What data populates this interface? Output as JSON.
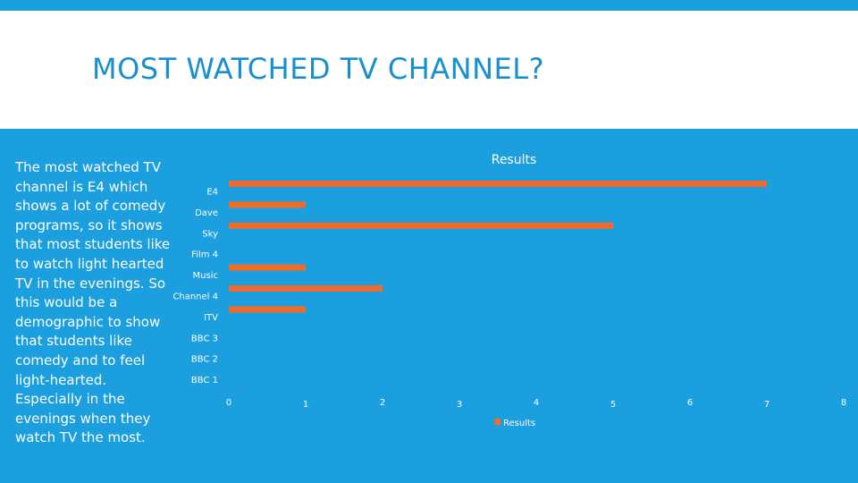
{
  "slide": {
    "title": "MOST WATCHED TV CHANNEL?",
    "body": "The most watched TV channel is E4 which shows a lot of comedy programs, so it shows that most students like to watch light hearted TV in the evenings. So this would be a demographic to show that students like comedy and to feel light-hearted. Especially in the evenings when they watch TV the most.",
    "background_color": "#1b9fdf",
    "title_color": "#1a8fd0"
  },
  "chart_data": {
    "type": "bar",
    "orientation": "horizontal",
    "title": "Results",
    "categories": [
      "E4",
      "Dave",
      "Sky",
      "Film 4",
      "Music",
      "Channel 4",
      "ITV",
      "BBC 3",
      "BBC 2",
      "BBC 1"
    ],
    "series": [
      {
        "name": "Results",
        "color": "#ef6a2b",
        "values": [
          7,
          1,
          5,
          0,
          1,
          2,
          1,
          0,
          0,
          0
        ]
      }
    ],
    "xlim": [
      0,
      8
    ],
    "xticks": [
      "0",
      "1",
      "2",
      "3",
      "4",
      "5",
      "6",
      "7",
      "8"
    ],
    "grid": false,
    "legend_position": "bottom"
  }
}
